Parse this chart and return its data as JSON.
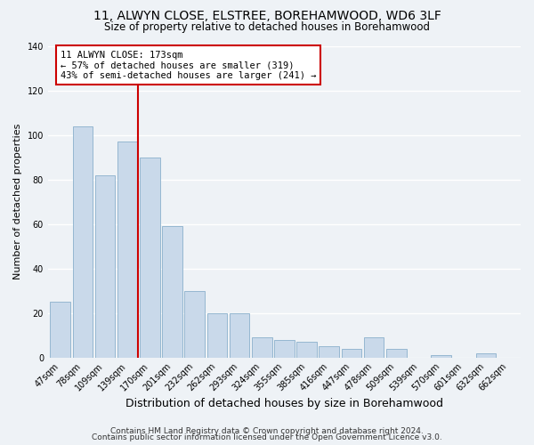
{
  "title": "11, ALWYN CLOSE, ELSTREE, BOREHAMWOOD, WD6 3LF",
  "subtitle": "Size of property relative to detached houses in Borehamwood",
  "xlabel": "Distribution of detached houses by size in Borehamwood",
  "ylabel": "Number of detached properties",
  "bar_labels": [
    "47sqm",
    "78sqm",
    "109sqm",
    "139sqm",
    "170sqm",
    "201sqm",
    "232sqm",
    "262sqm",
    "293sqm",
    "324sqm",
    "355sqm",
    "385sqm",
    "416sqm",
    "447sqm",
    "478sqm",
    "509sqm",
    "539sqm",
    "570sqm",
    "601sqm",
    "632sqm",
    "662sqm"
  ],
  "bar_values": [
    25,
    104,
    82,
    97,
    90,
    59,
    30,
    20,
    20,
    9,
    8,
    7,
    5,
    4,
    9,
    4,
    0,
    1,
    0,
    2,
    0
  ],
  "bar_color": "#c9d9ea",
  "bar_edgecolor": "#8ab0cc",
  "vline_x_index": 4,
  "vline_color": "#cc0000",
  "annotation_title": "11 ALWYN CLOSE: 173sqm",
  "annotation_line1": "← 57% of detached houses are smaller (319)",
  "annotation_line2": "43% of semi-detached houses are larger (241) →",
  "annotation_box_edgecolor": "#cc0000",
  "ylim": [
    0,
    140
  ],
  "yticks": [
    0,
    20,
    40,
    60,
    80,
    100,
    120,
    140
  ],
  "footer_line1": "Contains HM Land Registry data © Crown copyright and database right 2024.",
  "footer_line2": "Contains public sector information licensed under the Open Government Licence v3.0.",
  "background_color": "#eef2f6",
  "grid_color": "#ffffff",
  "title_fontsize": 10,
  "subtitle_fontsize": 8.5,
  "xlabel_fontsize": 9,
  "ylabel_fontsize": 8,
  "tick_fontsize": 7,
  "annot_fontsize": 7.5,
  "footer_fontsize": 6.5
}
